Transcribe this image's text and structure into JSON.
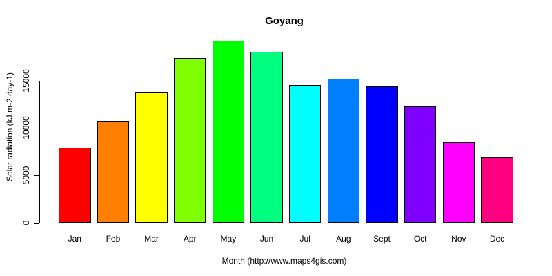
{
  "chart_data": {
    "type": "bar",
    "title": "Goyang",
    "xlabel": "Month (http://www.maps4gis.com)",
    "ylabel": "Solar radiation (kJ.m-2.day-1)",
    "categories": [
      "Jan",
      "Feb",
      "Mar",
      "Apr",
      "May",
      "Jun",
      "Jul",
      "Aug",
      "Sept",
      "Oct",
      "Nov",
      "Dec"
    ],
    "values": [
      7900,
      10650,
      13700,
      17350,
      19150,
      18000,
      14500,
      15200,
      14350,
      12300,
      8500,
      6900
    ],
    "colors": [
      "#FF0000",
      "#FF8000",
      "#FFFF00",
      "#80FF00",
      "#00FF00",
      "#00FF80",
      "#00FFFF",
      "#0080FF",
      "#0000FF",
      "#8000FF",
      "#FF00FF",
      "#FF0080"
    ],
    "bar_border_color": "#000000",
    "axis_color": "#000000",
    "background_color": "#FFFFFF",
    "text_color": "#000000",
    "yticks": [
      0,
      5000,
      10000,
      15000
    ],
    "ytick_labels": [
      "0",
      "5000",
      "10000",
      "15000"
    ],
    "ylim": [
      0,
      15000
    ],
    "grid": false,
    "legend": false
  }
}
